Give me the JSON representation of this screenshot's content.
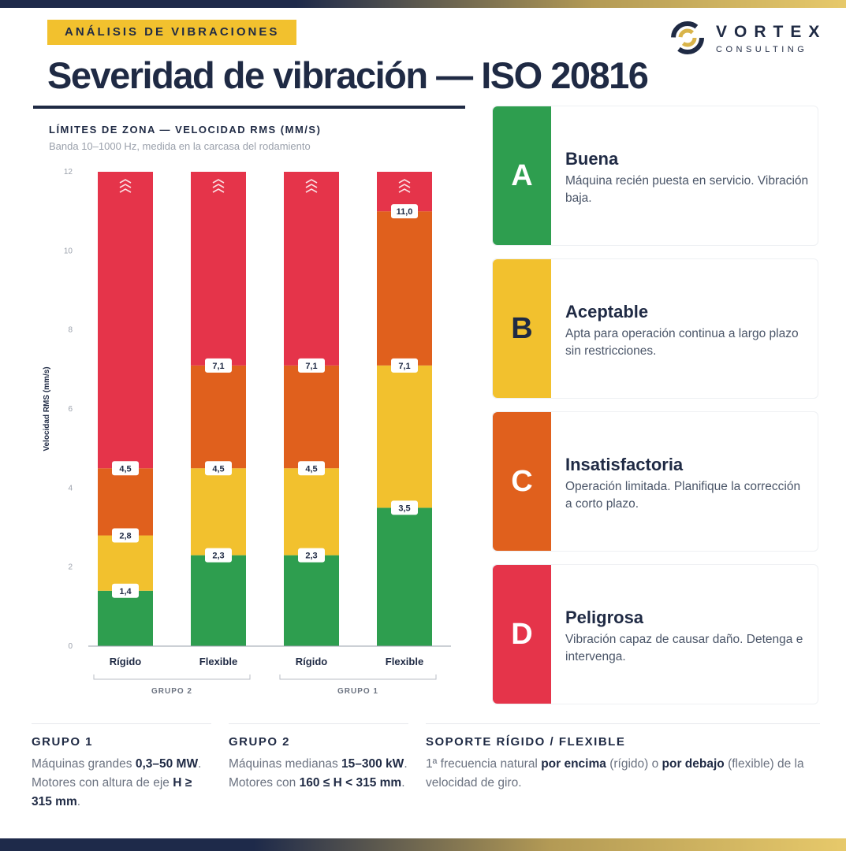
{
  "header": {
    "tag": "ANÁLISIS DE VIBRACIONES",
    "title": "Severidad de vibración — ISO 20816"
  },
  "logo": {
    "name": "VORTEX",
    "sub": "CONSULTING"
  },
  "colors": {
    "A": "#2e9e4f",
    "B": "#f2c12e",
    "C": "#e0601d",
    "D": "#e5344a",
    "navy": "#1f2a44"
  },
  "chart_data": {
    "type": "bar",
    "stacked": true,
    "title": "LÍMITES DE ZONA — VELOCIDAD RMS (MM/S)",
    "subtitle": "Banda 10–1000 Hz, medida en la carcasa del rodamiento",
    "ylabel": "Velocidad RMS (mm/s)",
    "xlabel": "",
    "ylim": [
      0,
      12
    ],
    "yticks": [
      0,
      2,
      4,
      6,
      8,
      10,
      12
    ],
    "categories": [
      "Rígido",
      "Flexible",
      "Rígido",
      "Flexible"
    ],
    "groups": [
      {
        "label": "GRUPO 2",
        "categories": [
          0,
          1
        ]
      },
      {
        "label": "GRUPO 1",
        "categories": [
          2,
          3
        ]
      }
    ],
    "boundaries": [
      [
        1.4,
        2.8,
        4.5
      ],
      [
        2.3,
        4.5,
        7.1
      ],
      [
        2.3,
        4.5,
        7.1
      ],
      [
        3.5,
        7.1,
        11.0
      ]
    ],
    "boundary_labels": [
      [
        "1,4",
        "2,8",
        "4,5"
      ],
      [
        "2,3",
        "4,5",
        "7,1"
      ],
      [
        "2,3",
        "4,5",
        "7,1"
      ],
      [
        "3,5",
        "7,1",
        "11,0"
      ]
    ],
    "series": [
      {
        "name": "A",
        "values": [
          1.4,
          2.3,
          2.3,
          3.5
        ]
      },
      {
        "name": "B",
        "values": [
          1.4,
          2.2,
          2.2,
          3.6
        ]
      },
      {
        "name": "C",
        "values": [
          1.7,
          2.6,
          2.6,
          3.9
        ]
      },
      {
        "name": "D",
        "values": [
          7.5,
          4.9,
          4.9,
          1.0
        ]
      }
    ],
    "grid": false
  },
  "zones": [
    {
      "letter": "A",
      "name": "Buena",
      "desc": "Máquina recién puesta en servicio. Vibración baja.",
      "color": "#2e9e4f"
    },
    {
      "letter": "B",
      "name": "Aceptable",
      "desc": "Apta para operación continua a largo plazo sin restricciones.",
      "color": "#f2c12e"
    },
    {
      "letter": "C",
      "name": "Insatisfactoria",
      "desc": "Operación limitada. Planifique la corrección a corto plazo.",
      "color": "#e0601d"
    },
    {
      "letter": "D",
      "name": "Peligrosa",
      "desc": "Vibración capaz de causar daño. Detenga e intervenga.",
      "color": "#e5344a"
    }
  ],
  "notes": [
    {
      "title": "GRUPO 1",
      "parts": [
        {
          "t": "Máquinas grandes ",
          "b": false
        },
        {
          "t": "0,3–50 MW",
          "b": true
        },
        {
          "t": ". Motores con altura de eje ",
          "b": false
        },
        {
          "t": "H ≥ 315 mm",
          "b": true
        },
        {
          "t": ".",
          "b": false
        }
      ]
    },
    {
      "title": "GRUPO 2",
      "parts": [
        {
          "t": "Máquinas medianas ",
          "b": false
        },
        {
          "t": "15–300 kW",
          "b": true
        },
        {
          "t": ". Motores con ",
          "b": false
        },
        {
          "t": "160 ≤ H < 315 mm",
          "b": true
        },
        {
          "t": ".",
          "b": false
        }
      ]
    },
    {
      "title": "SOPORTE RÍGIDO / FLEXIBLE",
      "parts": [
        {
          "t": "1ª frecuencia natural ",
          "b": false
        },
        {
          "t": "por encima",
          "b": true
        },
        {
          "t": " (rígido) o ",
          "b": false
        },
        {
          "t": "por debajo",
          "b": true
        },
        {
          "t": " (flexible) de la velocidad de giro.",
          "b": false
        }
      ]
    }
  ]
}
